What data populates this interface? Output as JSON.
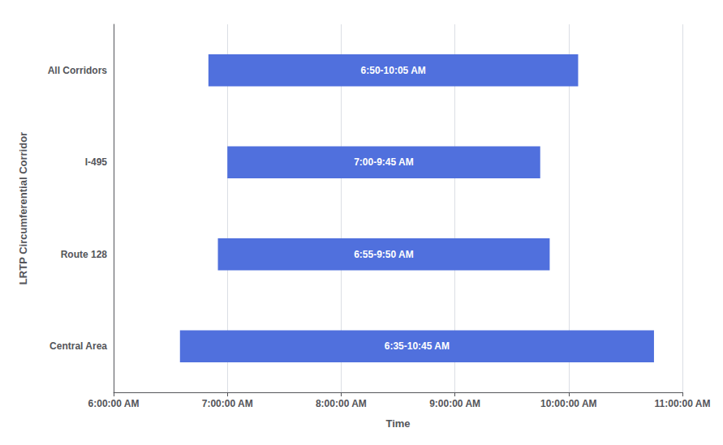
{
  "chart_data": {
    "type": "bar",
    "orientation": "horizontal",
    "xlabel": "Time",
    "ylabel": "LRTP Circumferential Corridor",
    "categories": [
      "Central Area",
      "Route 128",
      "I-495",
      "All Corridors"
    ],
    "values": [
      [
        395,
        645
      ],
      [
        415,
        590
      ],
      [
        420,
        585
      ],
      [
        410,
        605
      ]
    ],
    "value_labels": [
      "6:35-10:45 AM",
      "6:55-9:50 AM",
      "7:00-9:45 AM",
      "6:50-10:05 AM"
    ],
    "data_labels": true,
    "xlim": [
      360,
      660
    ],
    "xticks": [
      {
        "value": 360,
        "label": "6:00:00 AM"
      },
      {
        "value": 420,
        "label": "7:00:00 AM"
      },
      {
        "value": 480,
        "label": "8:00:00 AM"
      },
      {
        "value": 540,
        "label": "9:00:00 AM"
      },
      {
        "value": 600,
        "label": "10:00:00 AM"
      },
      {
        "value": 660,
        "label": "11:00:00 AM"
      }
    ],
    "grid": true
  }
}
